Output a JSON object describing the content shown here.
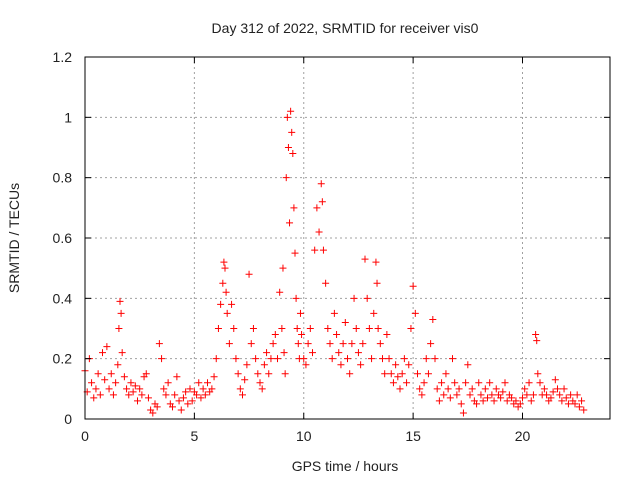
{
  "colors": {
    "point": "#ff0000",
    "grid": "#a0a0a0",
    "axis": "#000000",
    "text": "#222222"
  },
  "chart_data": {
    "type": "scatter",
    "title": "Day 312 of 2022, SRMTID for receiver vis0",
    "xlabel": "GPS time / hours",
    "ylabel": "SRMTID / TECUs",
    "xlim": [
      0,
      24
    ],
    "ylim": [
      0,
      1.2
    ],
    "xticks": [
      0,
      5,
      10,
      15,
      20
    ],
    "xtick_labels": [
      "0",
      "5",
      "10",
      "15",
      "20"
    ],
    "yticks": [
      0,
      0.2,
      0.4,
      0.6,
      0.8,
      1,
      1.2
    ],
    "ytick_labels": [
      "0",
      "0.2",
      "0.4",
      "0.6",
      "0.8",
      "1",
      "1.2"
    ],
    "grid": true,
    "marker": "+",
    "series": [
      {
        "name": "vis0",
        "points": [
          [
            0.0,
            0.16
          ],
          [
            0.1,
            0.09
          ],
          [
            0.2,
            0.2
          ],
          [
            0.3,
            0.12
          ],
          [
            0.4,
            0.07
          ],
          [
            0.5,
            0.1
          ],
          [
            0.6,
            0.15
          ],
          [
            0.7,
            0.08
          ],
          [
            0.8,
            0.22
          ],
          [
            0.9,
            0.13
          ],
          [
            1.0,
            0.24
          ],
          [
            1.1,
            0.1
          ],
          [
            1.2,
            0.15
          ],
          [
            1.3,
            0.08
          ],
          [
            1.4,
            0.12
          ],
          [
            1.5,
            0.18
          ],
          [
            1.55,
            0.3
          ],
          [
            1.6,
            0.39
          ],
          [
            1.65,
            0.35
          ],
          [
            1.7,
            0.22
          ],
          [
            1.8,
            0.14
          ],
          [
            1.9,
            0.1
          ],
          [
            2.0,
            0.08
          ],
          [
            2.1,
            0.12
          ],
          [
            2.2,
            0.09
          ],
          [
            2.3,
            0.11
          ],
          [
            2.4,
            0.06
          ],
          [
            2.5,
            0.1
          ],
          [
            2.6,
            0.08
          ],
          [
            2.7,
            0.14
          ],
          [
            2.8,
            0.15
          ],
          [
            2.9,
            0.07
          ],
          [
            3.0,
            0.03
          ],
          [
            3.1,
            0.02
          ],
          [
            3.2,
            0.05
          ],
          [
            3.3,
            0.04
          ],
          [
            3.4,
            0.25
          ],
          [
            3.5,
            0.2
          ],
          [
            3.6,
            0.1
          ],
          [
            3.7,
            0.08
          ],
          [
            3.8,
            0.12
          ],
          [
            3.9,
            0.05
          ],
          [
            4.0,
            0.04
          ],
          [
            4.1,
            0.08
          ],
          [
            4.2,
            0.14
          ],
          [
            4.3,
            0.06
          ],
          [
            4.4,
            0.03
          ],
          [
            4.5,
            0.07
          ],
          [
            4.6,
            0.09
          ],
          [
            4.7,
            0.05
          ],
          [
            4.8,
            0.1
          ],
          [
            4.9,
            0.06
          ],
          [
            5.0,
            0.09
          ],
          [
            5.1,
            0.08
          ],
          [
            5.2,
            0.12
          ],
          [
            5.3,
            0.07
          ],
          [
            5.4,
            0.1
          ],
          [
            5.5,
            0.08
          ],
          [
            5.6,
            0.12
          ],
          [
            5.7,
            0.09
          ],
          [
            5.8,
            0.1
          ],
          [
            5.9,
            0.14
          ],
          [
            6.0,
            0.2
          ],
          [
            6.1,
            0.3
          ],
          [
            6.2,
            0.38
          ],
          [
            6.3,
            0.45
          ],
          [
            6.35,
            0.52
          ],
          [
            6.4,
            0.5
          ],
          [
            6.45,
            0.42
          ],
          [
            6.5,
            0.35
          ],
          [
            6.6,
            0.25
          ],
          [
            6.7,
            0.38
          ],
          [
            6.8,
            0.3
          ],
          [
            6.9,
            0.2
          ],
          [
            7.0,
            0.15
          ],
          [
            7.1,
            0.1
          ],
          [
            7.2,
            0.08
          ],
          [
            7.3,
            0.13
          ],
          [
            7.4,
            0.18
          ],
          [
            7.5,
            0.48
          ],
          [
            7.6,
            0.25
          ],
          [
            7.7,
            0.3
          ],
          [
            7.8,
            0.2
          ],
          [
            7.9,
            0.15
          ],
          [
            8.0,
            0.12
          ],
          [
            8.1,
            0.1
          ],
          [
            8.2,
            0.18
          ],
          [
            8.3,
            0.22
          ],
          [
            8.4,
            0.15
          ],
          [
            8.5,
            0.2
          ],
          [
            8.6,
            0.25
          ],
          [
            8.7,
            0.28
          ],
          [
            8.8,
            0.2
          ],
          [
            8.9,
            0.42
          ],
          [
            9.0,
            0.3
          ],
          [
            9.05,
            0.5
          ],
          [
            9.1,
            0.22
          ],
          [
            9.15,
            0.15
          ],
          [
            9.2,
            0.8
          ],
          [
            9.25,
            1.0
          ],
          [
            9.3,
            0.9
          ],
          [
            9.35,
            0.65
          ],
          [
            9.4,
            1.02
          ],
          [
            9.45,
            0.95
          ],
          [
            9.5,
            0.88
          ],
          [
            9.55,
            0.7
          ],
          [
            9.6,
            0.55
          ],
          [
            9.65,
            0.4
          ],
          [
            9.7,
            0.3
          ],
          [
            9.75,
            0.25
          ],
          [
            9.8,
            0.2
          ],
          [
            9.85,
            0.35
          ],
          [
            9.9,
            0.28
          ],
          [
            10.0,
            0.2
          ],
          [
            10.1,
            0.18
          ],
          [
            10.2,
            0.25
          ],
          [
            10.3,
            0.3
          ],
          [
            10.4,
            0.22
          ],
          [
            10.5,
            0.56
          ],
          [
            10.6,
            0.7
          ],
          [
            10.7,
            0.62
          ],
          [
            10.8,
            0.78
          ],
          [
            10.85,
            0.72
          ],
          [
            10.9,
            0.56
          ],
          [
            11.0,
            0.45
          ],
          [
            11.1,
            0.3
          ],
          [
            11.2,
            0.25
          ],
          [
            11.3,
            0.2
          ],
          [
            11.4,
            0.35
          ],
          [
            11.5,
            0.28
          ],
          [
            11.6,
            0.22
          ],
          [
            11.7,
            0.18
          ],
          [
            11.8,
            0.25
          ],
          [
            11.9,
            0.32
          ],
          [
            12.0,
            0.2
          ],
          [
            12.1,
            0.15
          ],
          [
            12.2,
            0.25
          ],
          [
            12.3,
            0.4
          ],
          [
            12.4,
            0.3
          ],
          [
            12.5,
            0.22
          ],
          [
            12.6,
            0.18
          ],
          [
            12.7,
            0.25
          ],
          [
            12.8,
            0.53
          ],
          [
            12.9,
            0.4
          ],
          [
            13.0,
            0.3
          ],
          [
            13.1,
            0.2
          ],
          [
            13.2,
            0.35
          ],
          [
            13.3,
            0.52
          ],
          [
            13.35,
            0.45
          ],
          [
            13.4,
            0.3
          ],
          [
            13.5,
            0.25
          ],
          [
            13.6,
            0.2
          ],
          [
            13.7,
            0.15
          ],
          [
            13.8,
            0.28
          ],
          [
            13.9,
            0.2
          ],
          [
            14.0,
            0.15
          ],
          [
            14.1,
            0.12
          ],
          [
            14.2,
            0.18
          ],
          [
            14.3,
            0.14
          ],
          [
            14.4,
            0.1
          ],
          [
            14.5,
            0.15
          ],
          [
            14.6,
            0.2
          ],
          [
            14.7,
            0.12
          ],
          [
            14.8,
            0.18
          ],
          [
            14.9,
            0.3
          ],
          [
            15.0,
            0.44
          ],
          [
            15.1,
            0.35
          ],
          [
            15.2,
            0.15
          ],
          [
            15.3,
            0.1
          ],
          [
            15.4,
            0.08
          ],
          [
            15.5,
            0.12
          ],
          [
            15.6,
            0.2
          ],
          [
            15.7,
            0.15
          ],
          [
            15.8,
            0.25
          ],
          [
            15.9,
            0.33
          ],
          [
            16.0,
            0.2
          ],
          [
            16.1,
            0.1
          ],
          [
            16.2,
            0.06
          ],
          [
            16.3,
            0.12
          ],
          [
            16.4,
            0.08
          ],
          [
            16.5,
            0.15
          ],
          [
            16.6,
            0.1
          ],
          [
            16.7,
            0.07
          ],
          [
            16.8,
            0.2
          ],
          [
            16.9,
            0.12
          ],
          [
            17.0,
            0.08
          ],
          [
            17.1,
            0.1
          ],
          [
            17.2,
            0.05
          ],
          [
            17.3,
            0.02
          ],
          [
            17.4,
            0.12
          ],
          [
            17.5,
            0.18
          ],
          [
            17.6,
            0.08
          ],
          [
            17.7,
            0.1
          ],
          [
            17.8,
            0.06
          ],
          [
            17.9,
            0.05
          ],
          [
            18.0,
            0.12
          ],
          [
            18.1,
            0.08
          ],
          [
            18.2,
            0.06
          ],
          [
            18.3,
            0.1
          ],
          [
            18.4,
            0.07
          ],
          [
            18.5,
            0.12
          ],
          [
            18.6,
            0.08
          ],
          [
            18.7,
            0.06
          ],
          [
            18.8,
            0.1
          ],
          [
            18.9,
            0.08
          ],
          [
            19.0,
            0.07
          ],
          [
            19.1,
            0.09
          ],
          [
            19.2,
            0.12
          ],
          [
            19.3,
            0.06
          ],
          [
            19.4,
            0.08
          ],
          [
            19.5,
            0.07
          ],
          [
            19.6,
            0.05
          ],
          [
            19.7,
            0.06
          ],
          [
            19.8,
            0.04
          ],
          [
            19.9,
            0.05
          ],
          [
            20.0,
            0.07
          ],
          [
            20.1,
            0.1
          ],
          [
            20.2,
            0.08
          ],
          [
            20.3,
            0.12
          ],
          [
            20.4,
            0.06
          ],
          [
            20.5,
            0.08
          ],
          [
            20.6,
            0.28
          ],
          [
            20.65,
            0.26
          ],
          [
            20.7,
            0.15
          ],
          [
            20.8,
            0.12
          ],
          [
            20.9,
            0.08
          ],
          [
            21.0,
            0.1
          ],
          [
            21.1,
            0.08
          ],
          [
            21.2,
            0.06
          ],
          [
            21.3,
            0.07
          ],
          [
            21.4,
            0.09
          ],
          [
            21.5,
            0.13
          ],
          [
            21.6,
            0.1
          ],
          [
            21.7,
            0.08
          ],
          [
            21.8,
            0.06
          ],
          [
            21.9,
            0.1
          ],
          [
            22.0,
            0.07
          ],
          [
            22.1,
            0.05
          ],
          [
            22.2,
            0.08
          ],
          [
            22.3,
            0.06
          ],
          [
            22.4,
            0.05
          ],
          [
            22.5,
            0.08
          ],
          [
            22.6,
            0.04
          ],
          [
            22.7,
            0.06
          ],
          [
            22.8,
            0.03
          ]
        ]
      }
    ]
  }
}
